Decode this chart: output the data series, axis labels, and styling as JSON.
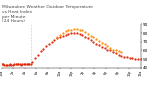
{
  "title_line1": "Milwaukee Weather Outdoor Temperature",
  "title_line2": "vs Heat Index",
  "title_line3": "per Minute",
  "title_line4": "(24 Hours)",
  "title_fontsize": 3.2,
  "title_color": "#444444",
  "bg_color": "#ffffff",
  "plot_bg_color": "#ffffff",
  "line1_color": "#dd2200",
  "line2_color": "#ff8800",
  "marker_size": 1.2,
  "ylim": [
    40,
    90
  ],
  "yticks": [
    40,
    50,
    60,
    70,
    80,
    90
  ],
  "ytick_fontsize": 3.0,
  "xtick_fontsize": 2.4,
  "vline_x": 0.21,
  "vline_color": "#999999",
  "temp_x": [
    0.0,
    0.01,
    0.02,
    0.03,
    0.04,
    0.05,
    0.06,
    0.07,
    0.08,
    0.09,
    0.1,
    0.11,
    0.12,
    0.13,
    0.14,
    0.15,
    0.16,
    0.17,
    0.18,
    0.19,
    0.2,
    0.21,
    0.22,
    0.24,
    0.26,
    0.28,
    0.3,
    0.32,
    0.34,
    0.36,
    0.38,
    0.4,
    0.42,
    0.44,
    0.46,
    0.48,
    0.5,
    0.52,
    0.54,
    0.56,
    0.58,
    0.6,
    0.62,
    0.64,
    0.66,
    0.68,
    0.7,
    0.72,
    0.74,
    0.76,
    0.78,
    0.8,
    0.82,
    0.84,
    0.86,
    0.88,
    0.9,
    0.92,
    0.94,
    0.96,
    0.98,
    1.0
  ],
  "temp_y": [
    44,
    44,
    43,
    43,
    43,
    43,
    44,
    43,
    43,
    44,
    44,
    44,
    44,
    44,
    43,
    44,
    44,
    44,
    44,
    44,
    44,
    45,
    47,
    51,
    55,
    59,
    62,
    65,
    68,
    70,
    72,
    74,
    76,
    77,
    78,
    79,
    80,
    80,
    80,
    79,
    78,
    76,
    74,
    72,
    70,
    68,
    66,
    64,
    63,
    61,
    60,
    58,
    57,
    55,
    54,
    53,
    52,
    51,
    51,
    50,
    50,
    50
  ],
  "heat_x": [
    0.4,
    0.42,
    0.44,
    0.46,
    0.48,
    0.5,
    0.52,
    0.54,
    0.56,
    0.58,
    0.6,
    0.62,
    0.64,
    0.66,
    0.68,
    0.7,
    0.72,
    0.74,
    0.76,
    0.78,
    0.8,
    0.82,
    0.84,
    0.86
  ],
  "heat_y": [
    76,
    78,
    80,
    82,
    83,
    84,
    85,
    85,
    84,
    83,
    81,
    79,
    77,
    75,
    73,
    71,
    69,
    67,
    65,
    63,
    61,
    60,
    59,
    58
  ],
  "xtick_positions": [
    0.0,
    0.083,
    0.167,
    0.25,
    0.333,
    0.417,
    0.5,
    0.583,
    0.667,
    0.75,
    0.833,
    0.917,
    1.0
  ],
  "xtick_labels": [
    "12a",
    "2a",
    "4a",
    "6a",
    "8a",
    "10a",
    "12p",
    "2p",
    "4p",
    "6p",
    "8p",
    "10p",
    "12a"
  ]
}
